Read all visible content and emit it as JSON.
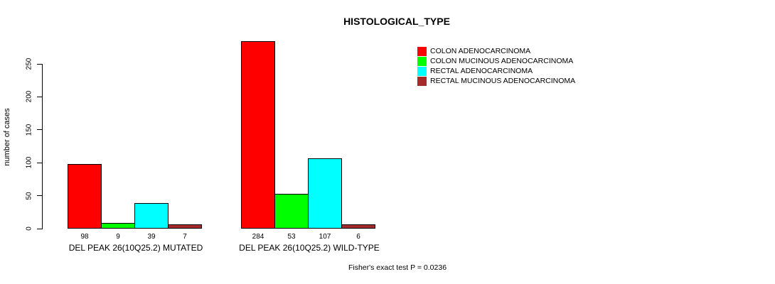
{
  "chart_data": {
    "type": "bar",
    "title": "HISTOLOGICAL_TYPE",
    "ylabel": "number of cases",
    "xlabel": "",
    "categories": [
      "DEL PEAK 26(10Q25.2) MUTATED",
      "DEL PEAK 26(10Q25.2) WILD-TYPE"
    ],
    "series": [
      {
        "name": "COLON ADENOCARCINOMA",
        "color": "#ff0000",
        "values": [
          98,
          284
        ]
      },
      {
        "name": "COLON MUCINOUS ADENOCARCINOMA",
        "color": "#00ff00",
        "values": [
          9,
          53
        ]
      },
      {
        "name": "RECTAL ADENOCARCINOMA",
        "color": "#00ffff",
        "values": [
          39,
          107
        ]
      },
      {
        "name": "RECTAL MUCINOUS ADENOCARCINOMA",
        "color": "#a52a2a",
        "values": [
          7,
          6
        ]
      }
    ],
    "bar_value_labels": [
      [
        98,
        9,
        39,
        7
      ],
      [
        284,
        53,
        107,
        6
      ]
    ],
    "yticks": [
      0,
      50,
      100,
      150,
      200,
      250
    ],
    "ylim": [
      0,
      250
    ],
    "grid": false,
    "legend_position": "top-right",
    "bar_border_color": "#000000",
    "annotation": "Fisher's exact test P = 0.0236"
  }
}
